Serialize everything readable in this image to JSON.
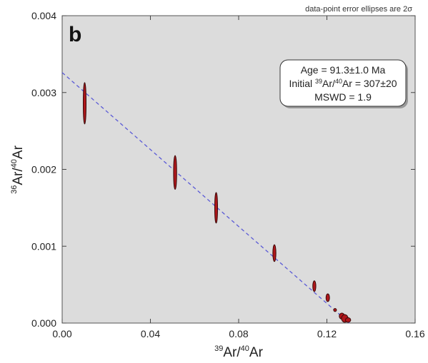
{
  "panel_label": "b",
  "note": "data-point error ellipses are 2σ",
  "axis": {
    "x": {
      "sup1": "39",
      "base1": "Ar/",
      "sup2": "40",
      "base2": "Ar"
    },
    "y": {
      "sup1": "36",
      "base1": "Ar/",
      "sup2": "40",
      "base2": "Ar"
    }
  },
  "result_box": {
    "line1": "Age = 91.3±1.0 Ma",
    "line2_pre": "Initial ",
    "line2_sup1": "39",
    "line2_mid": "Ar/",
    "line2_sup2": "40",
    "line2_post": "Ar = 307±20",
    "line3": "MSWD = 1.9"
  },
  "colors": {
    "plot_background": "#dcdcdc",
    "ellipse_fill": "#b0171b",
    "ellipse_stroke": "#3a0a0a",
    "regression_line": "#5b5bd6"
  },
  "chart_data": {
    "type": "scatter",
    "xlim": [
      0.0,
      0.16
    ],
    "ylim": [
      0.0,
      0.004
    ],
    "x_ticks": [
      "0.00",
      "0.04",
      "0.08",
      "0.12",
      "0.16"
    ],
    "y_ticks": [
      "0.000",
      "0.001",
      "0.002",
      "0.003",
      "0.004"
    ],
    "grid": false,
    "regression": {
      "intercept": 0.00326,
      "x_intercept": 0.1302
    },
    "points": [
      {
        "x": 0.0102,
        "y": 0.00286,
        "sx": 0.0004,
        "sy": 0.00027
      },
      {
        "x": 0.0512,
        "y": 0.00196,
        "sx": 0.0007,
        "sy": 0.00022
      },
      {
        "x": 0.0698,
        "y": 0.0015,
        "sx": 0.0005,
        "sy": 0.0002
      },
      {
        "x": 0.0962,
        "y": 0.00091,
        "sx": 0.0007,
        "sy": 0.00011
      },
      {
        "x": 0.1143,
        "y": 0.00048,
        "sx": 0.0007,
        "sy": 7e-05
      },
      {
        "x": 0.1204,
        "y": 0.00033,
        "sx": 0.0008,
        "sy": 5e-05
      },
      {
        "x": 0.1237,
        "y": 0.00017,
        "sx": 0.0005,
        "sy": 2e-05
      },
      {
        "x": 0.1268,
        "y": 9e-05,
        "sx": 0.0012,
        "sy": 4e-05
      },
      {
        "x": 0.1281,
        "y": 6e-05,
        "sx": 0.0015,
        "sy": 5e-05
      },
      {
        "x": 0.1296,
        "y": 4e-05,
        "sx": 0.0012,
        "sy": 3e-05
      }
    ]
  }
}
